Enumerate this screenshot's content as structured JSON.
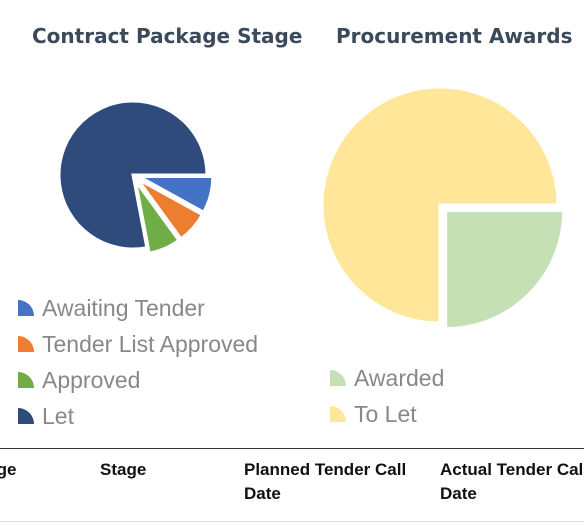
{
  "contract_panel": {
    "title": "Contract Package Stage",
    "legend": [
      {
        "label": "Awaiting Tender",
        "color": "#4472c4"
      },
      {
        "label": "Tender List Approved",
        "color": "#ed7d31"
      },
      {
        "label": "Approved",
        "color": "#70ad47"
      },
      {
        "label": "Let",
        "color": "#2f4b7c"
      }
    ],
    "chart_data": {
      "type": "pie",
      "labels": [
        "Awaiting Tender",
        "Tender List Approved",
        "Approved",
        "Let"
      ],
      "values": [
        8,
        7,
        7,
        78
      ],
      "colors": [
        "#4472c4",
        "#ed7d31",
        "#70ad47",
        "#2f4b7c"
      ]
    }
  },
  "procurement_panel": {
    "title": "Procurement Awards",
    "legend": [
      {
        "label": "Awarded",
        "color": "#c5e0b4"
      },
      {
        "label": "To Let",
        "color": "#ffe699"
      }
    ],
    "chart_data": {
      "type": "pie",
      "labels": [
        "Awarded",
        "To Let"
      ],
      "values": [
        25,
        75
      ],
      "colors": [
        "#c5e0b4",
        "#ffe699"
      ]
    }
  },
  "table": {
    "headers": {
      "charge": "rge",
      "stage": "Stage",
      "planned": "Planned Tender Call Date",
      "actual": "Actual Tender Call Date"
    }
  }
}
